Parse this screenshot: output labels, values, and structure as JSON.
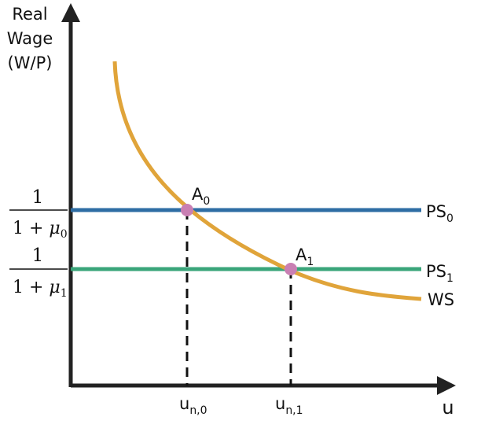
{
  "axes": {
    "y_label_lines": [
      "Real",
      "Wage",
      "(W/P)"
    ],
    "x_label": "u"
  },
  "y_ticks": {
    "ps0": {
      "numerator": "1",
      "denominator_prefix": "1 + ",
      "symbol": "μ",
      "subscript": "0"
    },
    "ps1": {
      "numerator": "1",
      "denominator_prefix": "1 + ",
      "symbol": "μ",
      "subscript": "1"
    }
  },
  "x_ticks": {
    "un0": {
      "main": "u",
      "subscript": "n,0"
    },
    "un1": {
      "main": "u",
      "subscript": "n,1"
    }
  },
  "curves": {
    "ps0": {
      "main": "PS",
      "subscript": "0",
      "color": "#2e6da4"
    },
    "ps1": {
      "main": "PS",
      "subscript": "1",
      "color": "#3aa57a"
    },
    "ws": {
      "label": "WS",
      "color": "#e0a43a"
    }
  },
  "points": {
    "a0": {
      "main": "A",
      "subscript": "0",
      "color": "#c97fb3"
    },
    "a1": {
      "main": "A",
      "subscript": "1",
      "color": "#c97fb3"
    }
  }
}
